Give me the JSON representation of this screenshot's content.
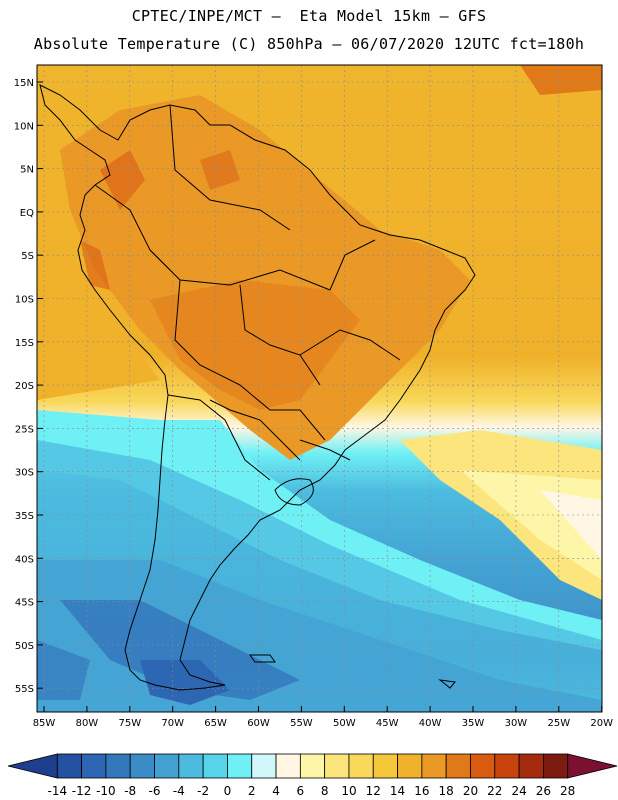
{
  "header": {
    "line1": "CPTEC/INPE/MCT –  Eta Model 15km – GFS",
    "line2": "Absolute Temperature (C) 850hPa – 06/07/2020 12UTC fct=180h"
  },
  "map": {
    "lat_labels": [
      "15N",
      "10N",
      "5N",
      "EQ",
      "5S",
      "10S",
      "15S",
      "20S",
      "25S",
      "30S",
      "35S",
      "40S",
      "45S",
      "50S",
      "55S"
    ],
    "lon_labels": [
      "85W",
      "80W",
      "75W",
      "70W",
      "65W",
      "60W",
      "55W",
      "50W",
      "45W",
      "40W",
      "35W",
      "30W",
      "25W",
      "20W"
    ]
  },
  "legend": {
    "labels": [
      "-14",
      "-12",
      "-10",
      "-8",
      "-6",
      "-4",
      "-2",
      "0",
      "2",
      "4",
      "6",
      "8",
      "10",
      "12",
      "14",
      "16",
      "18",
      "20",
      "22",
      "24",
      "26",
      "28"
    ],
    "colors": [
      "#1e3f8e",
      "#2552a0",
      "#2d66b2",
      "#3478bc",
      "#3b8bc6",
      "#43a1d2",
      "#4cbbdf",
      "#57d3ea",
      "#6ff0f5",
      "#d2f7fb",
      "#fff7e4",
      "#fdf5a8",
      "#fce57c",
      "#f9d85a",
      "#f4c83a",
      "#f0b22a",
      "#ea9826",
      "#e07a18",
      "#d85b12",
      "#c8430e",
      "#a52b0e",
      "#7c1b10",
      "#7c1030"
    ]
  }
}
